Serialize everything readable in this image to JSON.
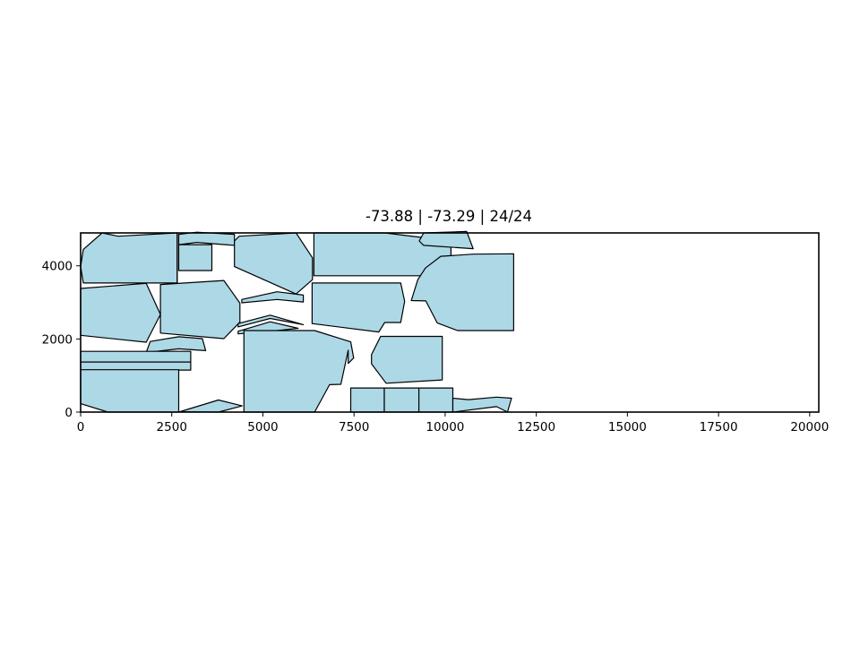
{
  "chart_data": {
    "type": "polygon-nesting",
    "title": "-73.88 | -73.29 | 24/24",
    "xlim": [
      0,
      20250
    ],
    "ylim": [
      0,
      4900
    ],
    "xticks": [
      0,
      2500,
      5000,
      7500,
      10000,
      12500,
      15000,
      17500,
      20000
    ],
    "yticks": [
      0,
      2000,
      4000
    ],
    "fill_color": "#add8e6",
    "edge_color": "#000000",
    "grid": false,
    "polygons": [
      [
        [
          74,
          3530
        ],
        [
          0,
          3980
        ],
        [
          74,
          4450
        ],
        [
          590,
          4900
        ],
        [
          1030,
          4810
        ],
        [
          2650,
          4900
        ],
        [
          2650,
          3530
        ]
      ],
      [
        [
          2650,
          4900
        ],
        [
          2650,
          3530
        ],
        [
          2650,
          4900
        ]
      ],
      [
        [
          2690,
          4580
        ],
        [
          2690,
          3870
        ],
        [
          3600,
          3870
        ],
        [
          3600,
          4580
        ]
      ],
      [
        [
          2690,
          4860
        ],
        [
          2690,
          4580
        ],
        [
          3190,
          4640
        ],
        [
          4220,
          4560
        ],
        [
          4220,
          4860
        ],
        [
          3190,
          4920
        ]
      ],
      [
        [
          4220,
          4680
        ],
        [
          4220,
          3980
        ],
        [
          5910,
          3230
        ],
        [
          6360,
          3620
        ],
        [
          6360,
          4220
        ],
        [
          5910,
          4900
        ],
        [
          4350,
          4810
        ]
      ],
      [
        [
          4420,
          3080
        ],
        [
          5390,
          3290
        ],
        [
          6110,
          3200
        ],
        [
          6110,
          3010
        ],
        [
          5390,
          3080
        ],
        [
          4420,
          2990
        ]
      ],
      [
        [
          0,
          3380
        ],
        [
          1800,
          3520
        ],
        [
          2190,
          2670
        ],
        [
          1800,
          1910
        ],
        [
          0,
          2100
        ]
      ],
      [
        [
          2190,
          3490
        ],
        [
          3930,
          3600
        ],
        [
          4370,
          2980
        ],
        [
          4370,
          2460
        ],
        [
          3930,
          2010
        ],
        [
          2190,
          2160
        ]
      ],
      [
        [
          4320,
          2420
        ],
        [
          5200,
          2650
        ],
        [
          6110,
          2390
        ],
        [
          5200,
          2560
        ],
        [
          4320,
          2330
        ]
      ],
      [
        [
          4320,
          2210
        ],
        [
          5200,
          2470
        ],
        [
          5970,
          2290
        ],
        [
          5200,
          2210
        ],
        [
          4320,
          2140
        ]
      ],
      [
        [
          6350,
          3530
        ],
        [
          8780,
          3530
        ],
        [
          8890,
          3030
        ],
        [
          8780,
          2450
        ],
        [
          8340,
          2450
        ],
        [
          8180,
          2190
        ],
        [
          6350,
          2420
        ]
      ],
      [
        [
          6400,
          4900
        ],
        [
          8340,
          4900
        ],
        [
          10160,
          4680
        ],
        [
          10160,
          3730
        ],
        [
          9430,
          3730
        ],
        [
          6400,
          3730
        ]
      ],
      [
        [
          9410,
          4900
        ],
        [
          10590,
          4940
        ],
        [
          10770,
          4470
        ],
        [
          9410,
          4560
        ],
        [
          9290,
          4680
        ]
      ],
      [
        [
          10770,
          4320
        ],
        [
          9880,
          4260
        ],
        [
          9460,
          3940
        ],
        [
          9250,
          3620
        ],
        [
          9070,
          3050
        ],
        [
          9470,
          3040
        ],
        [
          9780,
          2440
        ],
        [
          10340,
          2230
        ],
        [
          11880,
          2230
        ],
        [
          11880,
          4330
        ]
      ],
      [
        [
          8230,
          2070
        ],
        [
          9920,
          2070
        ],
        [
          9920,
          880
        ],
        [
          8380,
          790
        ],
        [
          7980,
          1320
        ],
        [
          7980,
          1570
        ]
      ],
      [
        [
          4480,
          2230
        ],
        [
          6420,
          2230
        ],
        [
          7410,
          1920
        ],
        [
          7490,
          1480
        ],
        [
          7340,
          1330
        ],
        [
          7340,
          1690
        ],
        [
          7140,
          760
        ],
        [
          6830,
          750
        ],
        [
          6420,
          0
        ],
        [
          4480,
          0
        ]
      ],
      [
        [
          1910,
          1930
        ],
        [
          2690,
          2060
        ],
        [
          3340,
          2010
        ],
        [
          3430,
          1680
        ],
        [
          2690,
          1730
        ],
        [
          1800,
          1630
        ]
      ],
      [
        [
          0,
          1660
        ],
        [
          3020,
          1660
        ],
        [
          3020,
          1370
        ],
        [
          0,
          1370
        ]
      ],
      [
        [
          0,
          1370
        ],
        [
          3020,
          1370
        ],
        [
          3020,
          1150
        ],
        [
          0,
          1150
        ]
      ],
      [
        [
          0,
          1160
        ],
        [
          0,
          230
        ],
        [
          750,
          0
        ],
        [
          2690,
          0
        ],
        [
          2690,
          1160
        ]
      ],
      [
        [
          2690,
          0
        ],
        [
          3780,
          330
        ],
        [
          4430,
          170
        ],
        [
          3780,
          0
        ],
        [
          2690,
          10
        ]
      ],
      [
        [
          7410,
          660
        ],
        [
          8330,
          660
        ],
        [
          8330,
          0
        ],
        [
          7410,
          0
        ]
      ],
      [
        [
          8330,
          660
        ],
        [
          9280,
          660
        ],
        [
          9280,
          0
        ],
        [
          8330,
          0
        ]
      ],
      [
        [
          9280,
          660
        ],
        [
          10210,
          660
        ],
        [
          10210,
          0
        ],
        [
          9280,
          0
        ]
      ],
      [
        [
          10210,
          380
        ],
        [
          10640,
          340
        ],
        [
          11410,
          410
        ],
        [
          11820,
          380
        ],
        [
          11710,
          0
        ],
        [
          11410,
          150
        ],
        [
          10210,
          0
        ]
      ]
    ]
  }
}
